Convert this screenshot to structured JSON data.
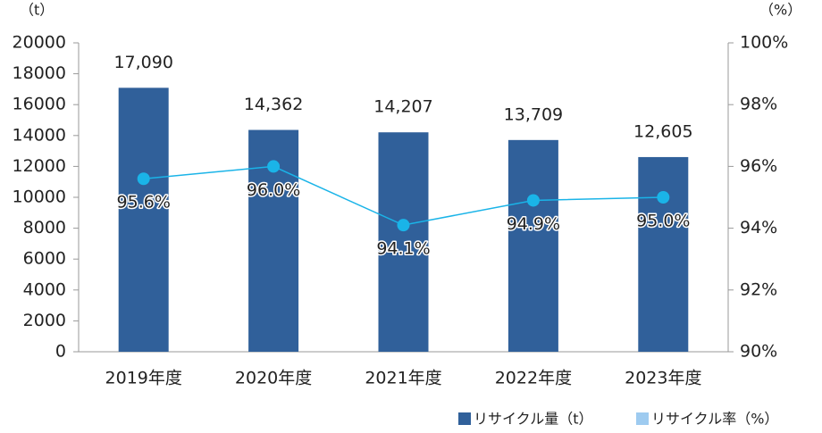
{
  "chart_data": {
    "type": "combo",
    "y_label": "（t）",
    "y2_label": "（%）",
    "categories": [
      "2019年度",
      "2020年度",
      "2021年度",
      "2022年度",
      "2023年度"
    ],
    "series": [
      {
        "name": "リサイクル量（t）",
        "type": "bar",
        "color": "#30609a",
        "values": [
          17090,
          14362,
          14207,
          13709,
          12605
        ],
        "value_labels": [
          "17,090",
          "14,362",
          "14,207",
          "13,709",
          "12,605"
        ]
      },
      {
        "name": "リサイクル率（%）",
        "type": "line",
        "axis": "y2",
        "color": "#1ab4e8",
        "legend_color": "#9ecbf0",
        "values": [
          95.6,
          96.0,
          94.1,
          94.9,
          95.0
        ],
        "value_labels": [
          "95.6%",
          "96.0%",
          "94.1%",
          "94.9%",
          "95.0%"
        ]
      }
    ],
    "ylim": [
      0,
      20000
    ],
    "yticks": [
      0,
      2000,
      4000,
      6000,
      8000,
      10000,
      12000,
      14000,
      16000,
      18000,
      20000
    ],
    "y2lim": [
      90,
      100
    ],
    "y2ticks": [
      {
        "value": 90,
        "label": "90%"
      },
      {
        "value": 92,
        "label": "92%"
      },
      {
        "value": 94,
        "label": "94%"
      },
      {
        "value": 96,
        "label": "96%"
      },
      {
        "value": 98,
        "label": "98%"
      },
      {
        "value": 100,
        "label": "100%"
      }
    ]
  }
}
